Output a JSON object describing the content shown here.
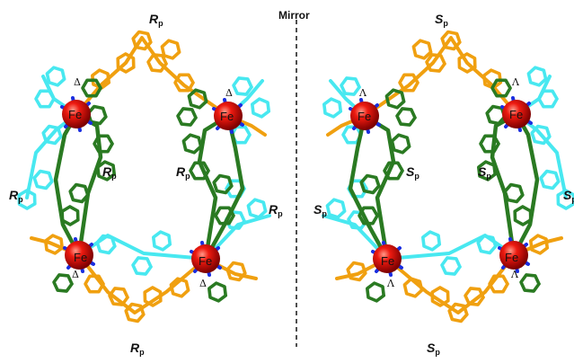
{
  "mirror_label": "Mirror",
  "left_cage": {
    "labels": {
      "top": {
        "letter": "R",
        "sub": "p"
      },
      "bottom": {
        "letter": "R",
        "sub": "p"
      },
      "left": {
        "letter": "R",
        "sub": "p"
      },
      "inner_left": {
        "letter": "R",
        "sub": "p"
      },
      "inner_right": {
        "letter": "R",
        "sub": "p"
      },
      "right": {
        "letter": "R",
        "sub": "p"
      }
    },
    "metal_label": "Fe",
    "chirality_symbol": "Δ"
  },
  "right_cage": {
    "labels": {
      "top": {
        "letter": "S",
        "sub": "p"
      },
      "bottom": {
        "letter": "S",
        "sub": "p"
      },
      "left": {
        "letter": "S",
        "sub": "p"
      },
      "inner_left": {
        "letter": "S",
        "sub": "p"
      },
      "inner_right": {
        "letter": "S",
        "sub": "p"
      },
      "right": {
        "letter": "S",
        "sub": "p"
      }
    },
    "metal_label": "Fe",
    "chirality_symbol": "Λ"
  },
  "colors": {
    "orange": "#f0a010",
    "cyan": "#48e8f0",
    "green": "#2a7a22",
    "blue": "#1a2ee0",
    "fe_red": "#e00808",
    "mirror_line": "#222222"
  }
}
